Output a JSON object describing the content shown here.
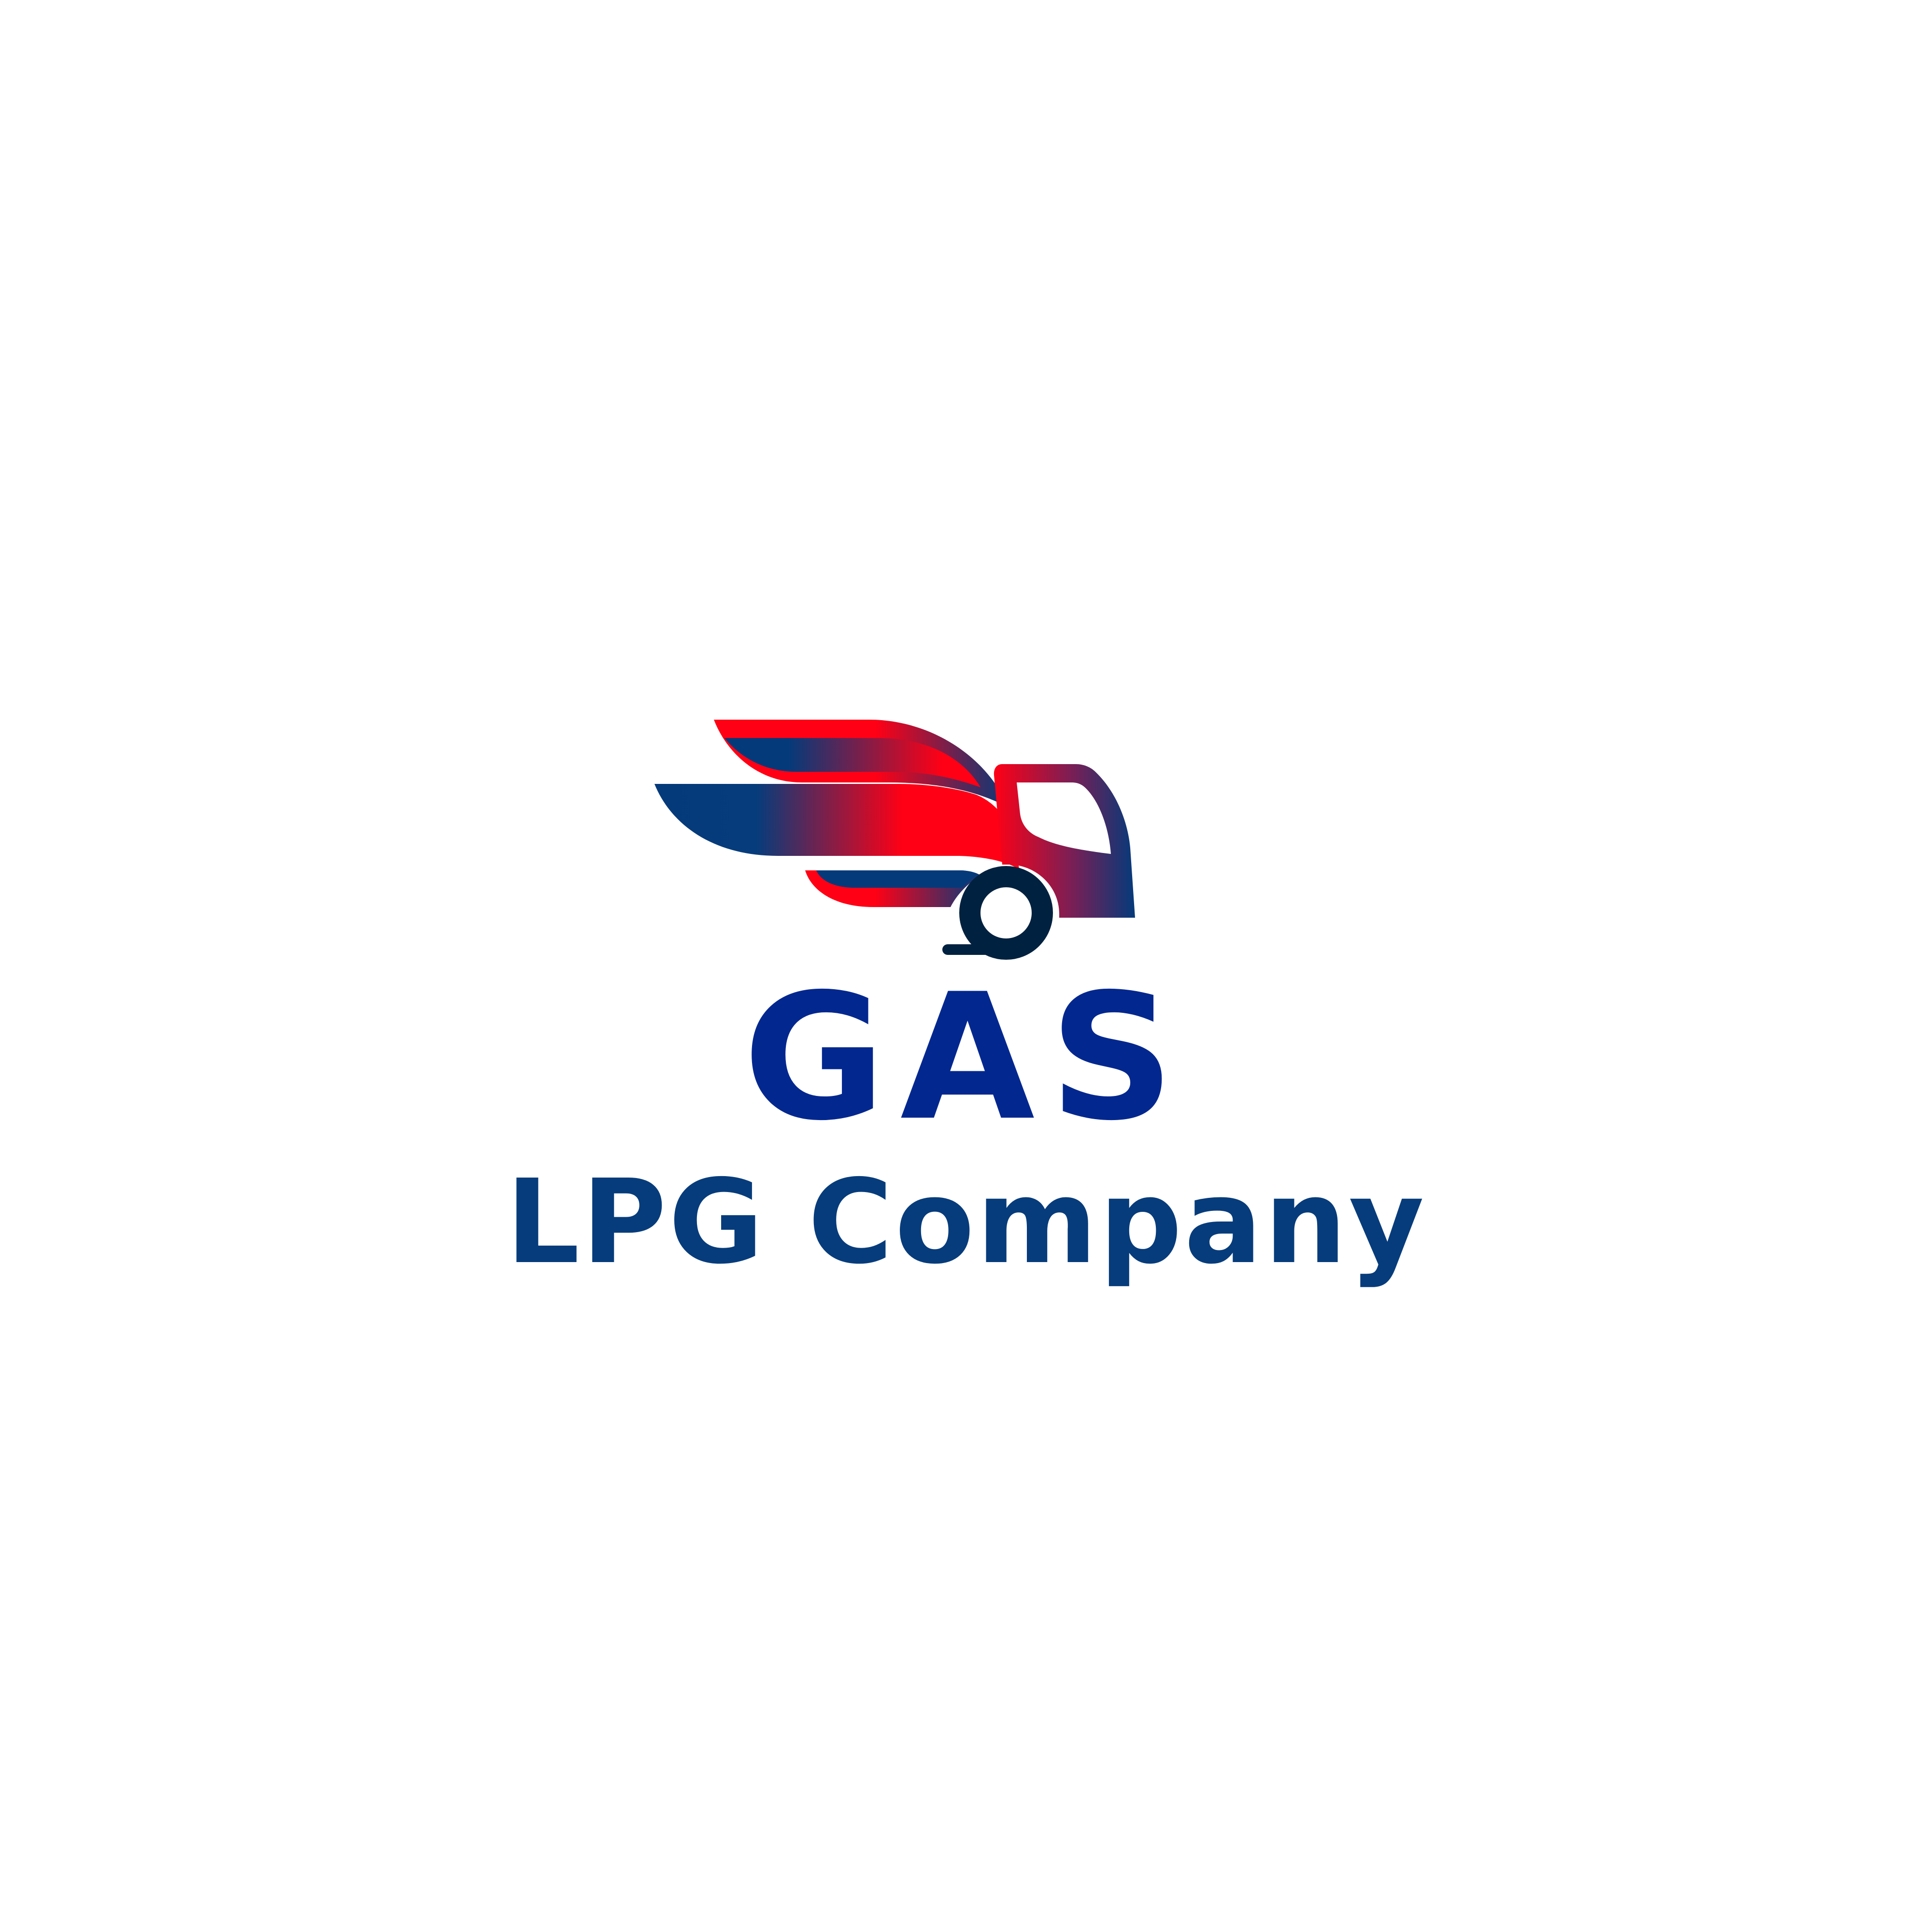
{
  "logo": {
    "icon": "winged-gas-truck-icon",
    "colors": {
      "navy": "#043a7a",
      "red": "#ff0015",
      "wheel": "#00213f",
      "title_blue": "#02278f",
      "tagline_blue": "#063c7b",
      "background": "#ffffff"
    }
  },
  "brand": {
    "title": "GAS",
    "tagline": "LPG Company"
  }
}
